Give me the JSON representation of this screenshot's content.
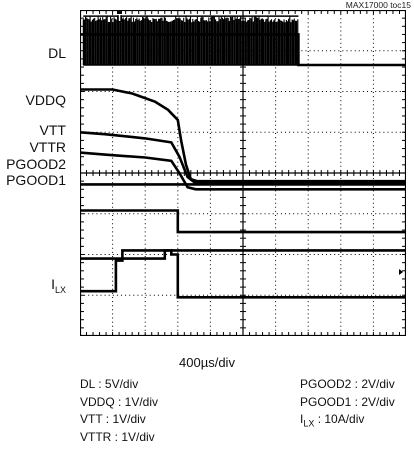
{
  "figure_tag": "MAX17000 toc15",
  "channel_labels": {
    "dl": "DL",
    "vddq": "VDDQ",
    "vtt": "VTT",
    "vttr": "VTTR",
    "pgood2": "PGOOD2",
    "pgood1": "PGOOD1",
    "ilx_main": "I",
    "ilx_sub": "LX"
  },
  "timebase": "400µs/div",
  "legend_left": [
    "DL : 5V/div",
    "VDDQ : 1V/div",
    "VTT : 1V/div",
    "VTTR : 1V/div"
  ],
  "legend_right_1": "PGOOD2 : 2V/div",
  "legend_right_2": "PGOOD1 : 2V/div",
  "legend_right_3_main": "I",
  "legend_right_3_sub": "LX",
  "legend_right_3_rest": " : 10A/div",
  "trigger_marker": "T",
  "colors": {
    "trace": "#000000",
    "grid": "#000000",
    "background": "#ffffff"
  },
  "chart_data": {
    "type": "line",
    "title": "",
    "xlabel": "400µs/div",
    "ylabel": "",
    "x_divisions": 10,
    "y_divisions": 8,
    "grid": true,
    "x_unit": "div",
    "series": [
      {
        "name": "DL",
        "kind": "switching",
        "x": [
          0,
          0.1,
          6.7,
          6.7,
          10
        ],
        "y": [
          7.4,
          7.4,
          7.4,
          6.65,
          6.65
        ],
        "burst_start": 0.1,
        "burst_end": 6.7,
        "burst_low": 6.65,
        "burst_high": 7.85
      },
      {
        "name": "VDDQ",
        "x": [
          0,
          1.0,
          1.6,
          2.3,
          2.7,
          3.0,
          3.1,
          3.25,
          3.4,
          3.6,
          10
        ],
        "y": [
          6.05,
          6.05,
          5.95,
          5.75,
          5.55,
          5.3,
          4.8,
          4.2,
          3.85,
          3.8,
          3.8
        ]
      },
      {
        "name": "VTT",
        "x": [
          0,
          0.8,
          2.0,
          2.8,
          3.05,
          3.3,
          3.55,
          10
        ],
        "y": [
          5.0,
          4.95,
          4.85,
          4.75,
          4.4,
          3.9,
          3.75,
          3.75
        ]
      },
      {
        "name": "VTTR",
        "x": [
          0,
          0.8,
          2.0,
          2.8,
          3.05,
          3.3,
          3.55,
          10
        ],
        "y": [
          4.5,
          4.45,
          4.38,
          4.3,
          4.0,
          3.65,
          3.6,
          3.6
        ]
      },
      {
        "name": "PGOOD2",
        "x": [
          0,
          10
        ],
        "y": [
          3.72,
          3.72
        ]
      },
      {
        "name": "PGOOD1",
        "x": [
          0,
          2.5,
          2.5,
          3.0,
          3.0,
          10
        ],
        "y": [
          3.08,
          3.08,
          3.08,
          3.08,
          2.55,
          2.55
        ]
      },
      {
        "name": "PGOOD2_step",
        "x": [
          0,
          2.6,
          2.6,
          10
        ],
        "y": [
          1.9,
          1.9,
          2.1,
          2.1
        ]
      },
      {
        "name": "ILX",
        "x": [
          0,
          1.1,
          1.1,
          1.3,
          1.3,
          2.8,
          2.8,
          3.0,
          3.0,
          10
        ],
        "y": [
          1.1,
          1.1,
          1.85,
          1.85,
          2.1,
          2.1,
          2.0,
          2.0,
          0.95,
          0.95
        ]
      }
    ]
  }
}
